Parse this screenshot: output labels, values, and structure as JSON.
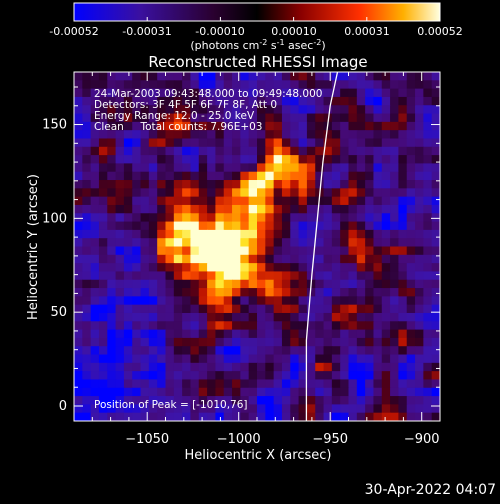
{
  "colorbar": {
    "ticks": [
      "-0.00052",
      "-0.00031",
      "-0.00010",
      "0.00010",
      "0.00031",
      "0.00052"
    ],
    "units_main": "(photons cm",
    "units_exp1": "-2",
    "units_mid": " s",
    "units_exp2": "-1",
    "units_tail": " asec",
    "units_exp3": "-2",
    "units_close": ")"
  },
  "chart_data": {
    "type": "heatmap",
    "title": "Reconstructed RHESSI Image",
    "xlabel": "Heliocentric X (arcsec)",
    "ylabel": "Heliocentric Y (arcsec)",
    "xlim": [
      -1090,
      -890
    ],
    "ylim": [
      -8,
      178
    ],
    "xticks": [
      -1050,
      -1000,
      -950,
      -900
    ],
    "xtick_labels": [
      "−1050",
      "−1000",
      "−950",
      "−900"
    ],
    "yticks": [
      0,
      50,
      100,
      150
    ],
    "ytick_labels": [
      "0",
      "50",
      "100",
      "150"
    ],
    "colormap": "rhessi thermal (blue-purple-red-orange-yellow-white)",
    "value_range": [
      -0.00052,
      0.00052
    ],
    "peak_position": [
      -1010,
      76
    ],
    "annotations": [
      "24-Mar-2003 09:43:48.000 to 09:49:48.000",
      "Detectors: 3F 4F 5F 6F 7F 8F, Att 0",
      "Energy Range: 12.0 - 25.0 keV",
      "Clean     Total counts: 7.96E+03",
      "Position of Peak = [-1010,76]"
    ],
    "limb_curve": [
      [
        -963,
        -8
      ],
      [
        -963,
        35
      ],
      [
        -960,
        70
      ],
      [
        -957,
        100
      ],
      [
        -954,
        130
      ],
      [
        -950,
        160
      ],
      [
        -946,
        178
      ]
    ]
  },
  "footer": {
    "date": "30-Apr-2022 04:07"
  }
}
